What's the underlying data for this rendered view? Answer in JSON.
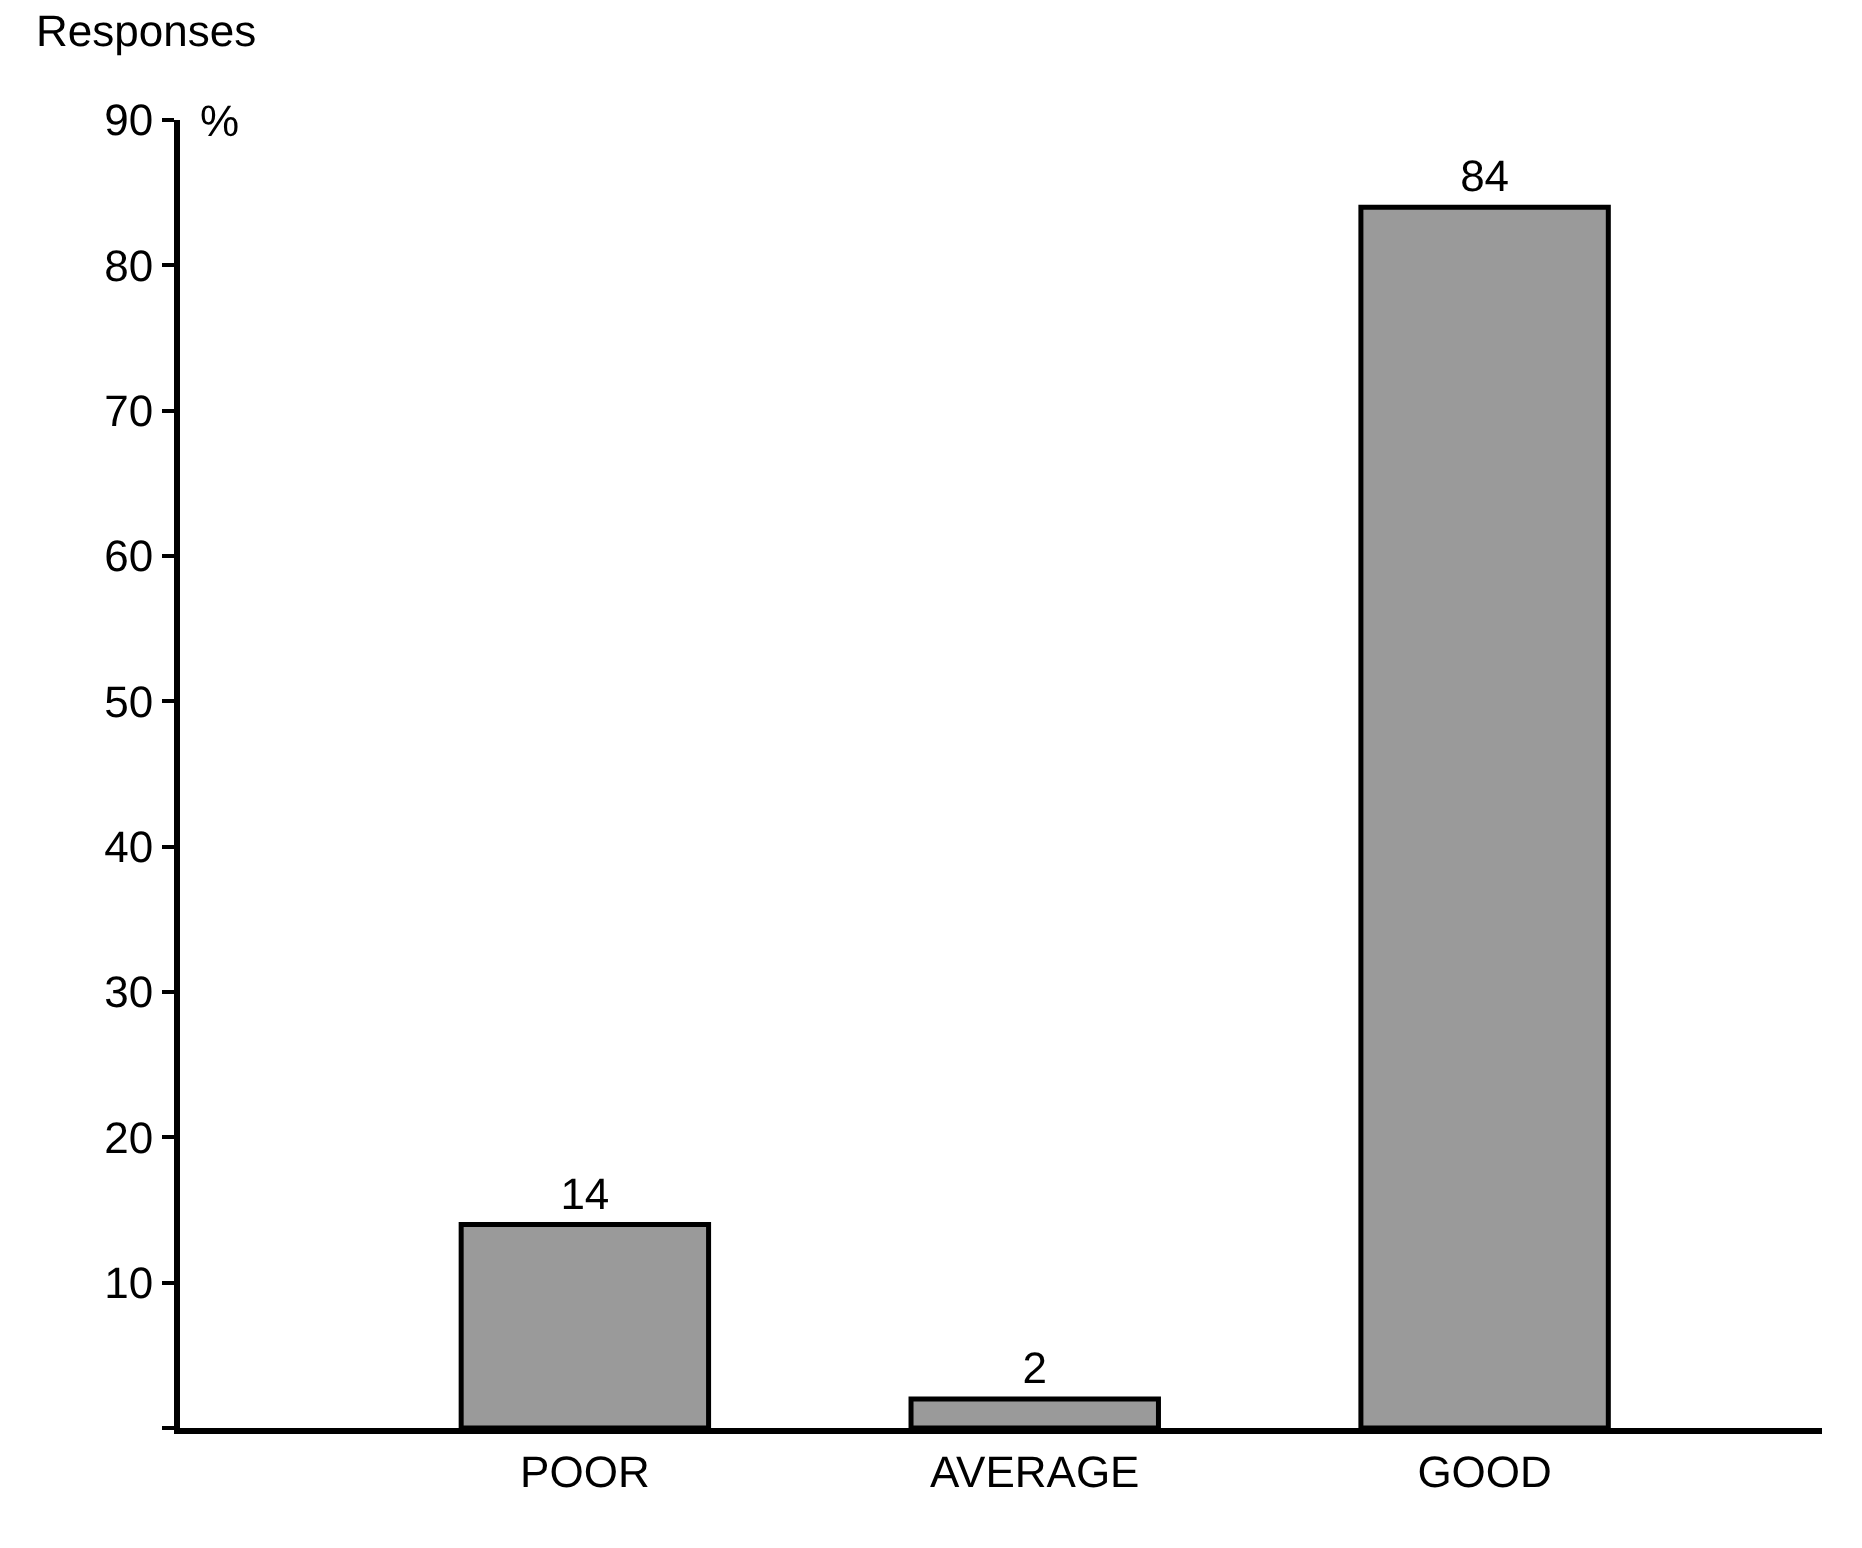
{
  "chart_data": {
    "type": "bar",
    "ylabel": "Responses",
    "annotations": [
      "%"
    ],
    "categories": [
      "POOR",
      "AVERAGE",
      "GOOD"
    ],
    "values": [
      14,
      2,
      84
    ],
    "color": "#9a9a9a",
    "ylim": [
      0,
      90
    ],
    "yticks": [
      {
        "value": 0,
        "label": null
      },
      10,
      20,
      30,
      40,
      50,
      60,
      70,
      80,
      90
    ],
    "data_labels": true
  }
}
